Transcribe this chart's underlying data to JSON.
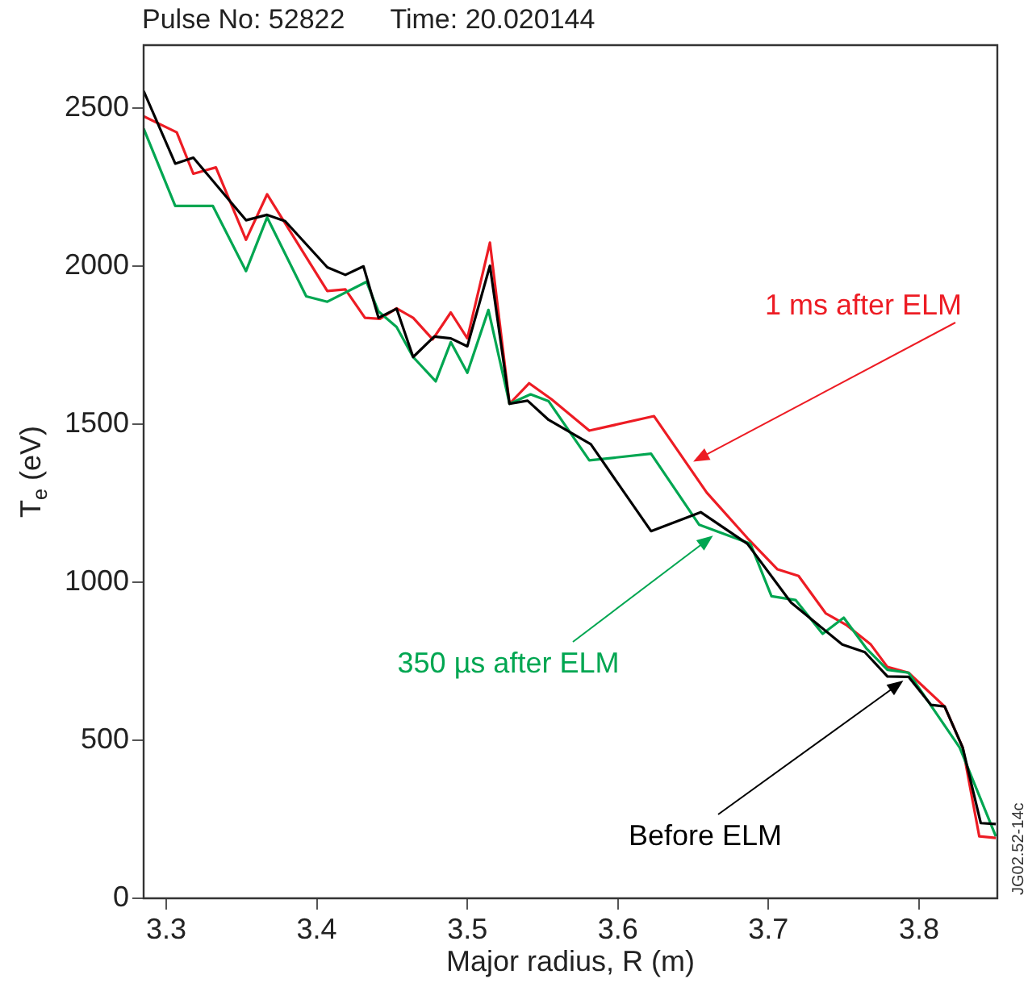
{
  "chart_data": {
    "type": "line",
    "title": "Pulse No: 52822      Time: 20.020144",
    "xlabel": "Major radius, R (m)",
    "ylabel": "T$_{e}$ (eV)",
    "xlim": [
      3.285,
      3.852
    ],
    "xticks": [
      3.3,
      3.4,
      3.5,
      3.6,
      3.7,
      3.8
    ],
    "ylim": [
      0,
      2700
    ],
    "yticks": [
      0,
      500,
      1000,
      1500,
      2000,
      2500
    ],
    "grid": false,
    "marker": "none",
    "line_style": "solid",
    "annotations": [
      "JG02.52-14c"
    ],
    "series": [
      {
        "name": "Before ELM",
        "color": "#000000",
        "x": [
          3.285,
          3.306,
          3.318,
          3.353,
          3.367,
          3.379,
          3.407,
          3.419,
          3.431,
          3.441,
          3.453,
          3.464,
          3.478,
          3.489,
          3.5,
          3.515,
          3.528,
          3.54,
          3.554,
          3.582,
          3.622,
          3.655,
          3.686,
          3.715,
          3.749,
          3.764,
          3.779,
          3.793,
          3.808,
          3.817,
          3.829,
          3.841,
          3.851
        ],
        "values": [
          2555,
          2325,
          2344,
          2146,
          2163,
          2143,
          1997,
          1973,
          2000,
          1837,
          1866,
          1713,
          1778,
          1772,
          1747,
          2002,
          1565,
          1575,
          1514,
          1437,
          1162,
          1222,
          1122,
          936,
          803,
          779,
          702,
          701,
          612,
          607,
          477,
          238,
          235
        ]
      },
      {
        "name": "350 µs after ELM",
        "color": "#00a651",
        "x": [
          3.285,
          3.306,
          3.331,
          3.353,
          3.367,
          3.393,
          3.407,
          3.433,
          3.441,
          3.453,
          3.464,
          3.479,
          3.489,
          3.5,
          3.514,
          3.528,
          3.542,
          3.554,
          3.581,
          3.622,
          3.654,
          3.688,
          3.702,
          3.718,
          3.736,
          3.75,
          3.765,
          3.779,
          3.793,
          3.827,
          3.851
        ],
        "values": [
          2436,
          2191,
          2191,
          1985,
          2155,
          1905,
          1888,
          1951,
          1857,
          1808,
          1713,
          1636,
          1760,
          1663,
          1862,
          1565,
          1595,
          1573,
          1386,
          1407,
          1182,
          1122,
          956,
          944,
          837,
          888,
          791,
          723,
          714,
          477,
          196
        ]
      },
      {
        "name": "1 ms after ELM",
        "color": "#ed1c24",
        "x": [
          3.285,
          3.307,
          3.318,
          3.333,
          3.353,
          3.367,
          3.407,
          3.419,
          3.432,
          3.442,
          3.453,
          3.464,
          3.477,
          3.489,
          3.5,
          3.515,
          3.528,
          3.541,
          3.556,
          3.581,
          3.624,
          3.659,
          3.686,
          3.706,
          3.72,
          3.738,
          3.752,
          3.768,
          3.779,
          3.793,
          3.817,
          3.829,
          3.84,
          3.851
        ],
        "values": [
          2475,
          2424,
          2293,
          2313,
          2084,
          2228,
          1922,
          1927,
          1837,
          1834,
          1867,
          1837,
          1769,
          1854,
          1772,
          2075,
          1565,
          1630,
          1579,
          1480,
          1526,
          1284,
          1140,
          1041,
          1020,
          902,
          864,
          803,
          732,
          714,
          607,
          477,
          196,
          191
        ]
      }
    ]
  }
}
